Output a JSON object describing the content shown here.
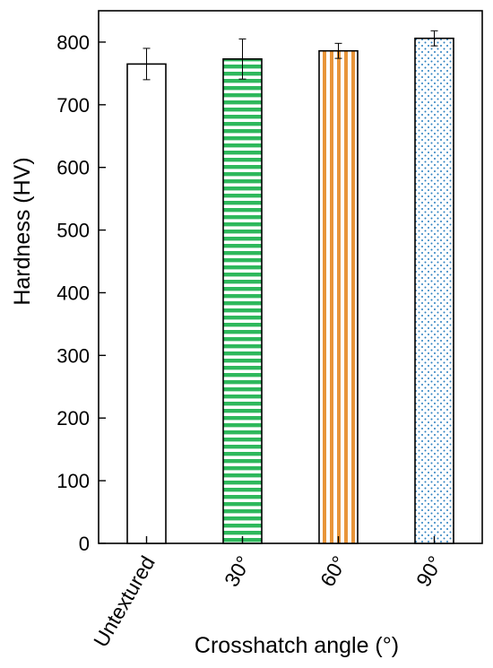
{
  "chart_data": {
    "type": "bar",
    "categories": [
      "Untextured",
      "30°",
      "60°",
      "90°"
    ],
    "values": [
      765,
      773,
      786,
      806
    ],
    "errors": [
      25,
      32,
      12,
      12
    ],
    "title": "",
    "xlabel": "Crosshatch angle (°)",
    "ylabel": "Hardness (HV)",
    "ylim": [
      0,
      850
    ],
    "yticks": [
      "0",
      "100",
      "200",
      "300",
      "400",
      "500",
      "600",
      "700",
      "800"
    ],
    "grid": false,
    "bar_styles": [
      {
        "fill": "#ffffff",
        "pattern": "none"
      },
      {
        "fill": "#2eb85c",
        "pattern": "horizontal-stripes"
      },
      {
        "fill": "#e8953a",
        "pattern": "vertical-stripes"
      },
      {
        "fill": "#2a7fc0",
        "pattern": "dots"
      }
    ]
  }
}
